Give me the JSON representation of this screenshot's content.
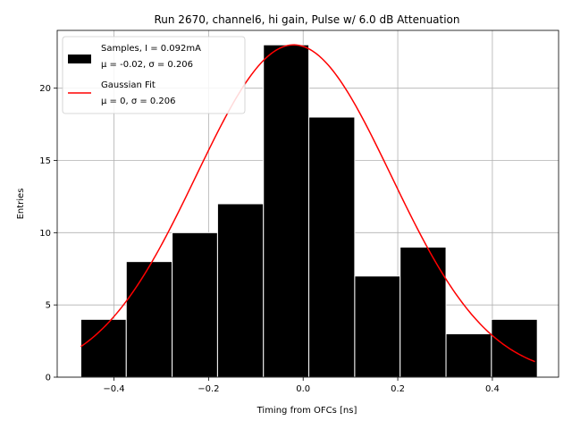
{
  "chart_data": {
    "type": "bar",
    "title": "Run 2670, channel6, hi gain, Pulse w/ 6.0 dB Attenuation",
    "xlabel": "Timing from OFCs [ns]",
    "ylabel": "Entries",
    "xlim": [
      -0.52,
      0.54
    ],
    "ylim": [
      0,
      24
    ],
    "x_ticks": [
      -0.4,
      -0.2,
      0.0,
      0.2,
      0.4
    ],
    "x_tick_labels": [
      "−0.4",
      "−0.2",
      "0.0",
      "0.2",
      "0.4"
    ],
    "y_ticks": [
      0,
      5,
      10,
      15,
      20
    ],
    "y_tick_labels": [
      "0",
      "5",
      "10",
      "15",
      "20"
    ],
    "grid": true,
    "legend_position": "top-left",
    "bin_edges": [
      -0.47,
      -0.374,
      -0.277,
      -0.181,
      -0.084,
      0.012,
      0.109,
      0.205,
      0.302,
      0.398,
      0.495
    ],
    "counts": [
      4,
      8,
      10,
      12,
      23,
      18,
      7,
      9,
      3,
      4
    ],
    "bar_color": "#000000",
    "fit_color": "#ff0000",
    "fit": {
      "amplitude": 23,
      "mean": -0.02,
      "sigma": 0.206,
      "x_range": [
        -0.47,
        0.49
      ]
    },
    "legend": [
      {
        "line1": "Samples, I = 0.092mA",
        "line2": "μ = -0.02, σ = 0.206",
        "kind": "box"
      },
      {
        "line1": "Gaussian Fit",
        "line2": "μ = 0, σ = 0.206",
        "kind": "line"
      }
    ]
  }
}
